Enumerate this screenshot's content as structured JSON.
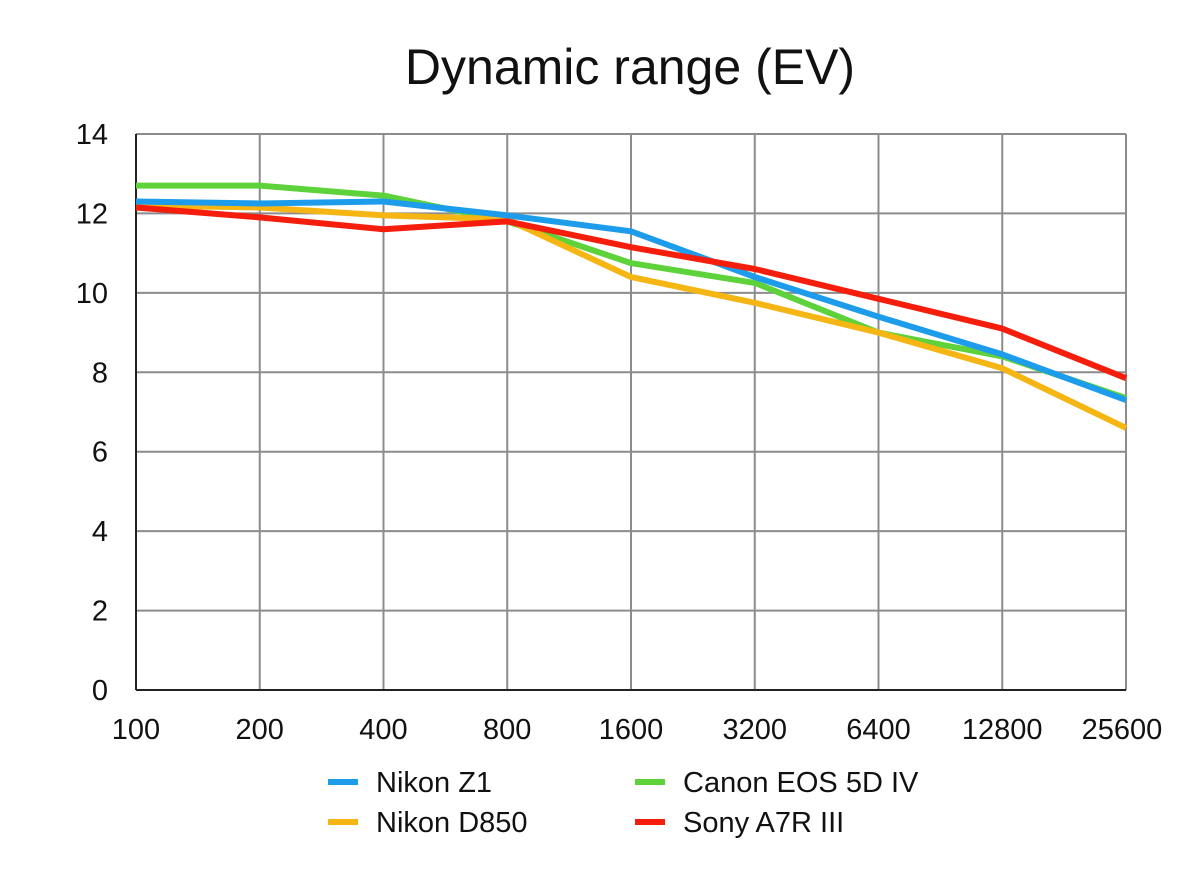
{
  "chart_data": {
    "type": "line",
    "title": "Dynamic range (EV)",
    "xlabel": "",
    "ylabel": "",
    "categories": [
      "100",
      "200",
      "400",
      "800",
      "1600",
      "3200",
      "6400",
      "12800",
      "25600"
    ],
    "yticks": [
      0,
      2,
      4,
      6,
      8,
      10,
      12,
      14
    ],
    "ylim": [
      0,
      14
    ],
    "grid": true,
    "legend_position": "bottom",
    "series": [
      {
        "name": "Nikon Z1",
        "color": "#1c9cea",
        "values": [
          12.3,
          12.25,
          12.3,
          11.95,
          11.55,
          10.4,
          9.4,
          8.45,
          7.3
        ]
      },
      {
        "name": "Nikon D850",
        "color": "#f5b512",
        "values": [
          12.2,
          12.15,
          11.95,
          11.85,
          10.4,
          9.75,
          9.0,
          8.1,
          6.6
        ]
      },
      {
        "name": "Canon EOS 5D IV",
        "color": "#5ed23a",
        "values": [
          12.7,
          12.7,
          12.45,
          11.8,
          10.75,
          10.25,
          9.0,
          8.4,
          7.35
        ]
      },
      {
        "name": "Sony A7R III",
        "color": "#f51d0c",
        "values": [
          12.15,
          11.9,
          11.6,
          11.8,
          11.15,
          10.6,
          9.85,
          9.1,
          7.85
        ]
      }
    ]
  }
}
